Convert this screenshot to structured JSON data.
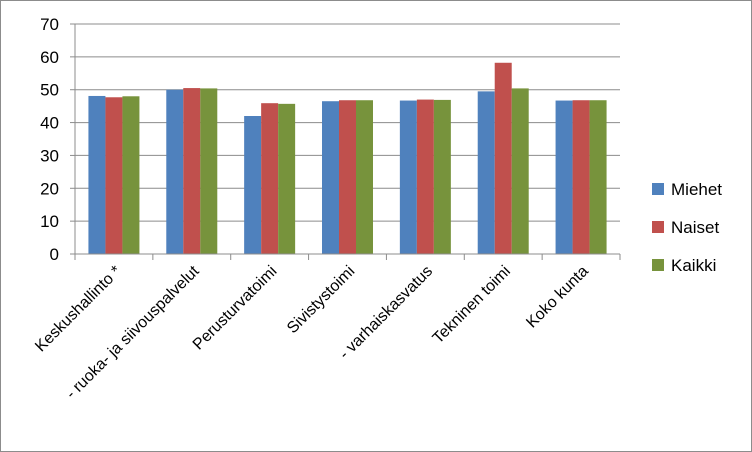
{
  "chart_data": {
    "type": "bar",
    "categories": [
      "Keskushallinto *",
      "- ruoka- ja siivouspalvelut",
      "Perusturvatoimi",
      "Sivistystoimi",
      "- varhaiskasvatus",
      "Tekninen toimi",
      "Koko kunta"
    ],
    "series": [
      {
        "name": "Miehet",
        "color": "#4f81bd",
        "values": [
          48.1,
          50.0,
          42.0,
          46.5,
          46.7,
          49.5,
          46.7
        ]
      },
      {
        "name": "Naiset",
        "color": "#c0504d",
        "values": [
          47.7,
          50.5,
          45.9,
          46.8,
          47.0,
          58.2,
          46.8
        ]
      },
      {
        "name": "Kaikki",
        "color": "#77933c",
        "values": [
          48.0,
          50.4,
          45.7,
          46.8,
          46.9,
          50.4,
          46.8
        ]
      }
    ],
    "ylim": [
      0,
      70
    ],
    "yticks": [
      0,
      10,
      20,
      30,
      40,
      50,
      60,
      70
    ],
    "grid": true,
    "legend": "right"
  }
}
